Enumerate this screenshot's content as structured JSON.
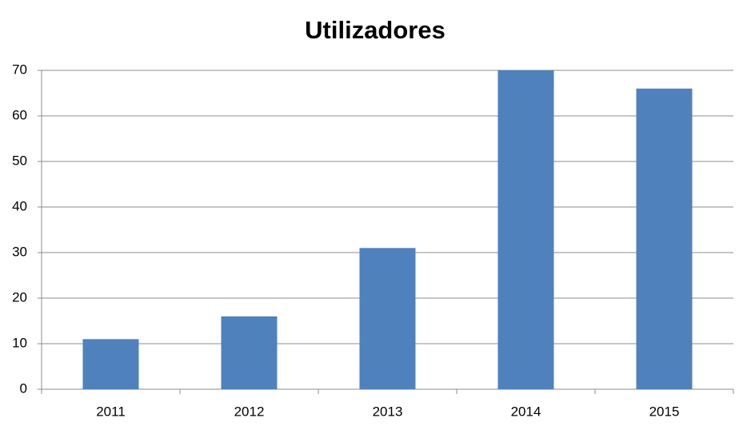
{
  "chart_data": {
    "type": "bar",
    "title": "Utilizadores",
    "categories": [
      "2011",
      "2012",
      "2013",
      "2014",
      "2015"
    ],
    "values": [
      11,
      16,
      31,
      70,
      66
    ],
    "color": "#4f81bd",
    "ylim": [
      0,
      70
    ],
    "yticks": [
      0,
      10,
      20,
      30,
      40,
      50,
      60,
      70
    ],
    "grid": true
  }
}
